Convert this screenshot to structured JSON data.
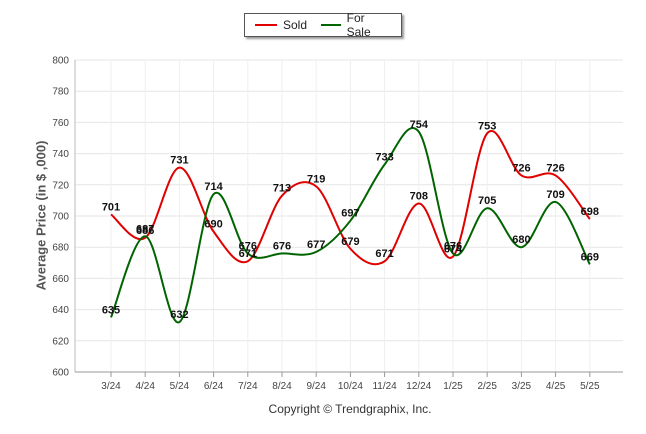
{
  "legend": {
    "sold": "Sold",
    "for_sale": "For Sale"
  },
  "footer": {
    "copyright": "Copyright © Trendgraphix, Inc."
  },
  "chart_data": {
    "type": "line",
    "ylabel": "Average Price (in $ ,000)",
    "xlabel": "",
    "ylim": [
      600,
      800
    ],
    "y_ticks": [
      600,
      620,
      640,
      660,
      680,
      700,
      720,
      740,
      760,
      780,
      800
    ],
    "grid": true,
    "legend_position": "top-center",
    "categories": [
      "3/24",
      "4/24",
      "5/24",
      "6/24",
      "7/24",
      "8/24",
      "9/24",
      "10/24",
      "11/24",
      "12/24",
      "1/25",
      "2/25",
      "3/25",
      "4/25",
      "5/25"
    ],
    "series": [
      {
        "name": "Sold",
        "color": "#e00000",
        "values": [
          701,
          686,
          731,
          690,
          671,
          713,
          719,
          679,
          671,
          708,
          674,
          753,
          726,
          726,
          698
        ]
      },
      {
        "name": "For Sale",
        "color": "#006400",
        "values": [
          635,
          687,
          632,
          714,
          676,
          676,
          677,
          697,
          733,
          754,
          676,
          705,
          680,
          709,
          669
        ]
      }
    ]
  }
}
